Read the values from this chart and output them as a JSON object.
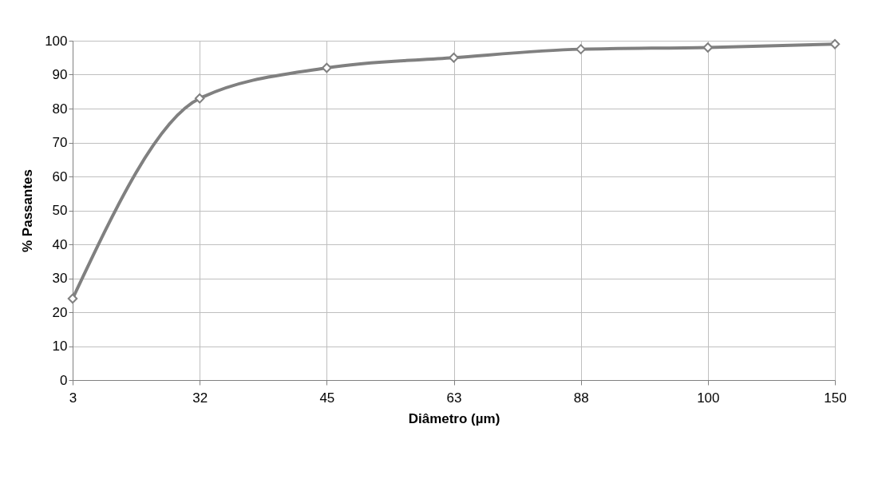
{
  "chart_data": {
    "type": "line",
    "xlabel": "Diâmetro (µm)",
    "ylabel": "% Passantes",
    "categories": [
      "3",
      "32",
      "45",
      "63",
      "88",
      "100",
      "150"
    ],
    "series": [
      {
        "color": "#808080",
        "values": [
          24,
          83,
          92,
          95,
          97.5,
          98,
          99
        ]
      }
    ],
    "ylim": [
      0,
      100
    ],
    "yticks": [
      0,
      10,
      20,
      30,
      40,
      50,
      60,
      70,
      80,
      90,
      100
    ],
    "grid": true,
    "marker": "diamond",
    "line_style": "solid"
  }
}
